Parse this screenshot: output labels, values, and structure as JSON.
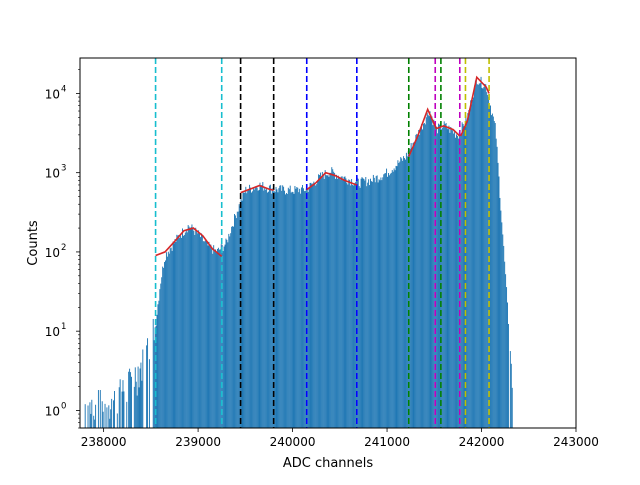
{
  "chart_data": {
    "type": "histogram",
    "title": "",
    "xlabel": "ADC channels",
    "ylabel": "Counts",
    "xlim": [
      237750,
      243000
    ],
    "ylim": [
      0.6,
      28000
    ],
    "yscale": "log",
    "grid": false,
    "x_ticks": [
      {
        "value": 238000,
        "label": "238000"
      },
      {
        "value": 239000,
        "label": "239000"
      },
      {
        "value": 240000,
        "label": "240000"
      },
      {
        "value": 241000,
        "label": "241000"
      },
      {
        "value": 242000,
        "label": "242000"
      },
      {
        "value": 243000,
        "label": "243000"
      }
    ],
    "y_ticks": [
      {
        "value": 1,
        "label": "10",
        "exp": "0"
      },
      {
        "value": 10,
        "label": "10",
        "exp": "1"
      },
      {
        "value": 100,
        "label": "10",
        "exp": "2"
      },
      {
        "value": 1000,
        "label": "10",
        "exp": "3"
      },
      {
        "value": 10000,
        "label": "10",
        "exp": "4"
      }
    ],
    "histogram": {
      "color": "#1f77b4",
      "envelope": [
        [
          237800,
          0.9
        ],
        [
          238000,
          1.0
        ],
        [
          238200,
          1.4
        ],
        [
          238400,
          3
        ],
        [
          238500,
          6
        ],
        [
          238550,
          12
        ],
        [
          238600,
          40
        ],
        [
          238650,
          90
        ],
        [
          238700,
          110
        ],
        [
          238800,
          160
        ],
        [
          238900,
          215
        ],
        [
          239000,
          170
        ],
        [
          239100,
          120
        ],
        [
          239200,
          100
        ],
        [
          239300,
          130
        ],
        [
          239400,
          300
        ],
        [
          239500,
          600
        ],
        [
          239650,
          700
        ],
        [
          239800,
          620
        ],
        [
          240000,
          600
        ],
        [
          240150,
          620
        ],
        [
          240300,
          900
        ],
        [
          240400,
          1050
        ],
        [
          240500,
          900
        ],
        [
          240700,
          750
        ],
        [
          240850,
          820
        ],
        [
          241000,
          1000
        ],
        [
          241200,
          1600
        ],
        [
          241350,
          3500
        ],
        [
          241450,
          6200
        ],
        [
          241520,
          3500
        ],
        [
          241600,
          4000
        ],
        [
          241750,
          3000
        ],
        [
          241850,
          5000
        ],
        [
          241950,
          15500
        ],
        [
          242050,
          12500
        ],
        [
          242150,
          3500
        ],
        [
          242250,
          60
        ],
        [
          242320,
          3
        ],
        [
          242340,
          0.7
        ]
      ]
    },
    "fits": {
      "color": "#d62728",
      "segments": [
        [
          [
            238550,
            90
          ],
          [
            238650,
            100
          ],
          [
            238750,
            135
          ],
          [
            238850,
            185
          ],
          [
            238950,
            200
          ],
          [
            239050,
            160
          ],
          [
            239150,
            110
          ],
          [
            239250,
            88
          ]
        ],
        [
          [
            239450,
            560
          ],
          [
            239550,
            620
          ],
          [
            239650,
            690
          ],
          [
            239750,
            620
          ],
          [
            239800,
            600
          ]
        ],
        [
          [
            240150,
            610
          ],
          [
            240250,
            750
          ],
          [
            240350,
            1000
          ],
          [
            240450,
            920
          ],
          [
            240550,
            800
          ],
          [
            240680,
            700
          ]
        ],
        [
          [
            241230,
            1600
          ],
          [
            241330,
            3000
          ],
          [
            241430,
            6300
          ],
          [
            241520,
            3600
          ],
          [
            241600,
            3900
          ],
          [
            241700,
            3500
          ],
          [
            241770,
            2900
          ]
        ],
        [
          [
            241780,
            2900
          ],
          [
            241850,
            4500
          ],
          [
            241950,
            16000
          ],
          [
            242050,
            12000
          ],
          [
            242080,
            10000
          ]
        ]
      ]
    },
    "vertical_lines": [
      {
        "x": 238550,
        "color": "#17becf"
      },
      {
        "x": 239250,
        "color": "#17becf"
      },
      {
        "x": 239450,
        "color": "#000000"
      },
      {
        "x": 239800,
        "color": "#000000"
      },
      {
        "x": 240150,
        "color": "#0000ff"
      },
      {
        "x": 240680,
        "color": "#0000ff"
      },
      {
        "x": 241230,
        "color": "#008000"
      },
      {
        "x": 241570,
        "color": "#008000"
      },
      {
        "x": 241510,
        "color": "#bf00bf"
      },
      {
        "x": 241770,
        "color": "#bf00bf"
      },
      {
        "x": 241830,
        "color": "#bfbf00"
      },
      {
        "x": 242080,
        "color": "#bfbf00"
      }
    ]
  }
}
